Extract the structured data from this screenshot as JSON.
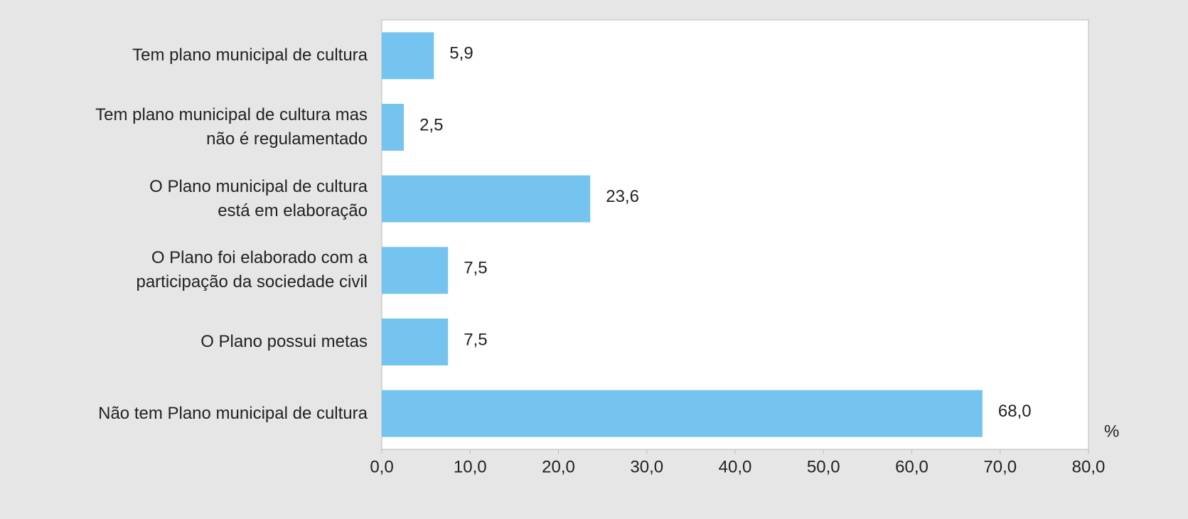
{
  "chart_data": {
    "type": "barh",
    "categories": [
      "Tem plano municipal de cultura",
      "Tem plano municipal de cultura mas\nnão é regulamentado",
      "O Plano municipal de cultura\nestá em elaboração",
      "O Plano foi elaborado com a\nparticipação da sociedade civil",
      "O Plano possui metas",
      "Não tem Plano municipal de cultura"
    ],
    "values": [
      5.9,
      2.5,
      23.6,
      7.5,
      7.5,
      68.0
    ],
    "value_labels": [
      "5,9",
      "2,5",
      "23,6",
      "7,5",
      "7,5",
      "68,0"
    ],
    "color": "#75c4f0",
    "xlim": [
      0,
      80
    ],
    "xticks": [
      {
        "value": 0,
        "label": "0,0"
      },
      {
        "value": 10,
        "label": "10,0"
      },
      {
        "value": 20,
        "label": "20,0"
      },
      {
        "value": 30,
        "label": "30,0"
      },
      {
        "value": 40,
        "label": "40,0"
      },
      {
        "value": 50,
        "label": "50,0"
      },
      {
        "value": 60,
        "label": "60,0"
      },
      {
        "value": 70,
        "label": "70,0"
      },
      {
        "value": 80,
        "label": "80,0"
      }
    ],
    "x_unit": "%"
  }
}
